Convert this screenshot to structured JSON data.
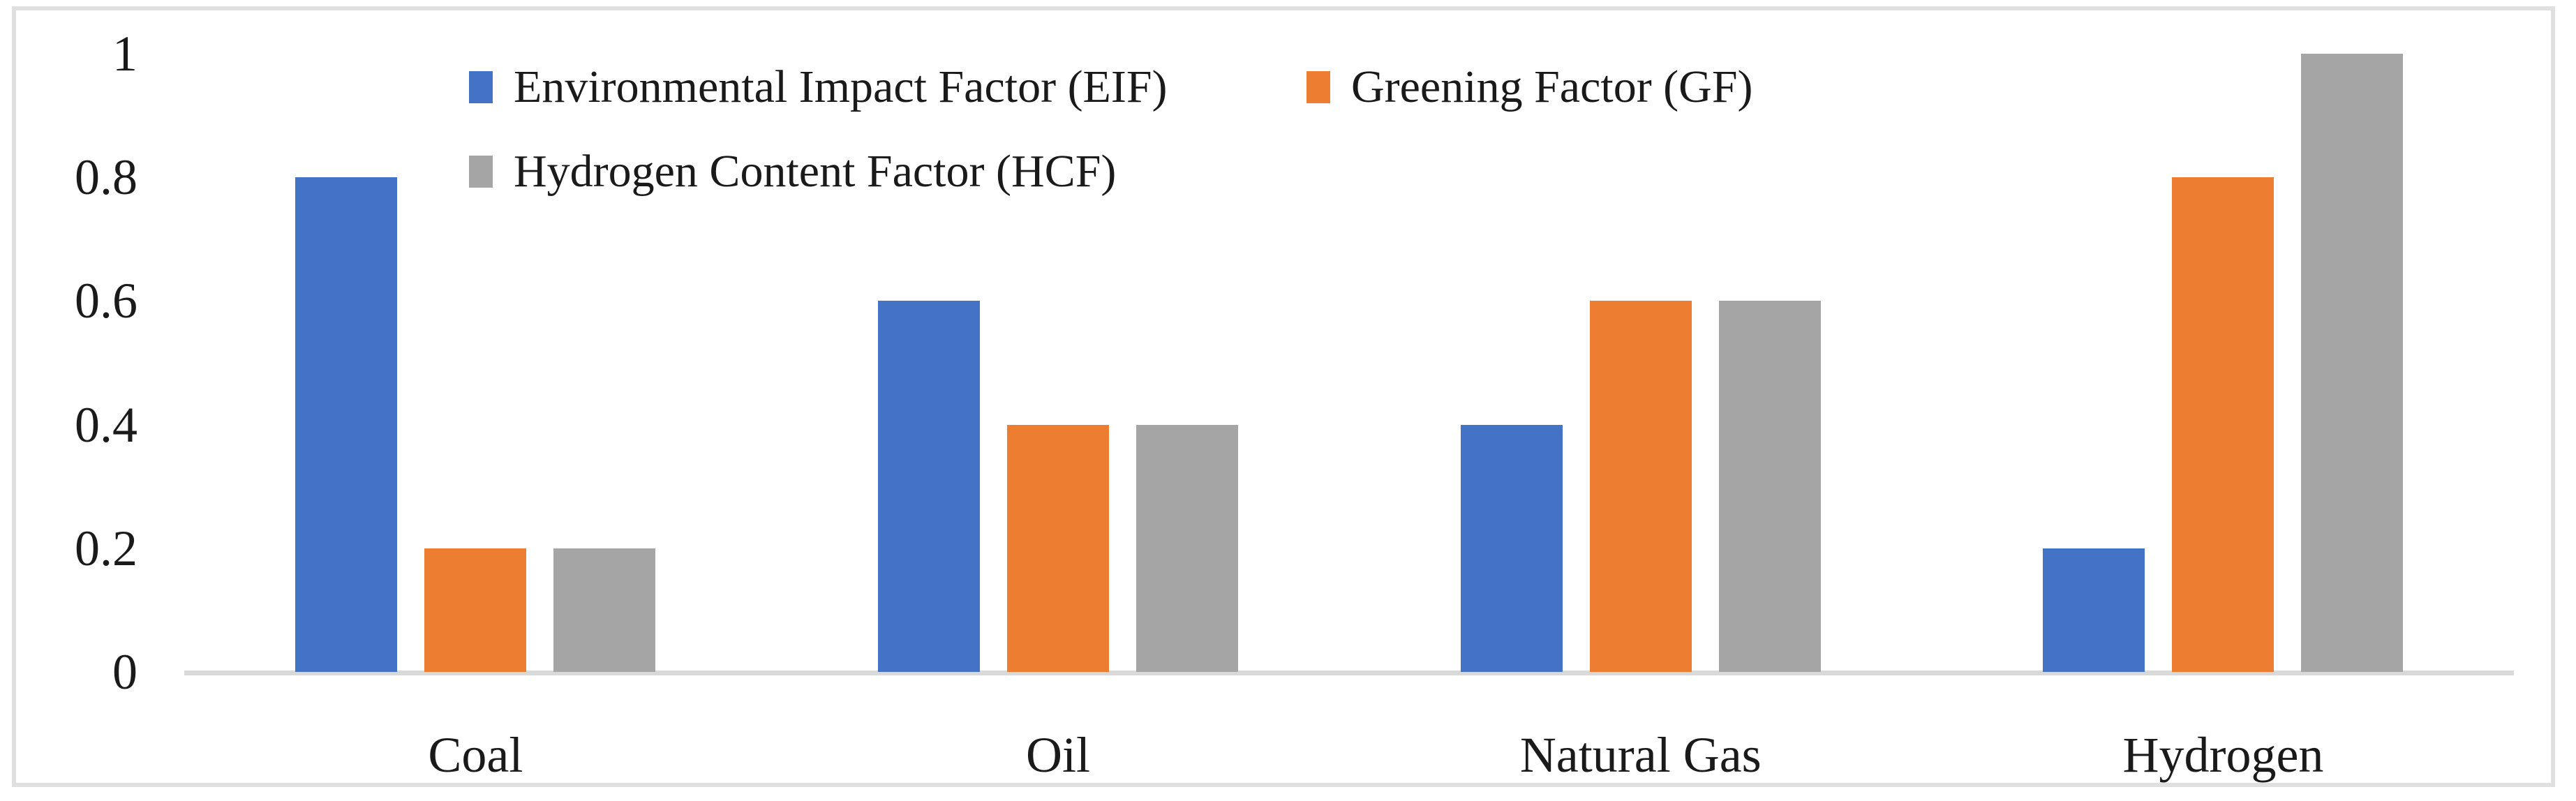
{
  "figure": {
    "background": "#ffffff",
    "frame_color": "#e0e0e0"
  },
  "legend": {
    "items": [
      {
        "label": "Environmental Impact Factor (EIF)",
        "color": "#4472C4"
      },
      {
        "label": "Greening Factor (GF)",
        "color": "#ED7D31"
      },
      {
        "label": "Hydrogen Content Factor (HCF)",
        "color": "#A5A5A5"
      }
    ]
  },
  "chart_data": {
    "type": "bar",
    "title": "",
    "xlabel": "",
    "ylabel": "",
    "categories": [
      "Coal",
      "Oil",
      "Natural Gas",
      "Hydrogen"
    ],
    "series": [
      {
        "name": "Environmental Impact Factor (EIF)",
        "color": "#4472C4",
        "values": [
          0.8,
          0.6,
          0.4,
          0.2
        ]
      },
      {
        "name": "Greening Factor (GF)",
        "color": "#ED7D31",
        "values": [
          0.2,
          0.4,
          0.6,
          0.8
        ]
      },
      {
        "name": "Hydrogen Content Factor (HCF)",
        "color": "#A5A5A5",
        "values": [
          0.2,
          0.4,
          0.6,
          1.0
        ]
      }
    ],
    "ylim": [
      0,
      1
    ],
    "ytick_values": [
      1,
      0.8,
      0.6,
      0.4,
      0.2,
      0
    ],
    "ytick_labels": [
      "1",
      "0.8",
      "0.6",
      "0.4",
      "0.2",
      "0"
    ],
    "grid": false,
    "legend_position": "top-inside-two-rows",
    "axis_line_color": "#d9d9d9",
    "text_color": "#1a1a1a"
  }
}
